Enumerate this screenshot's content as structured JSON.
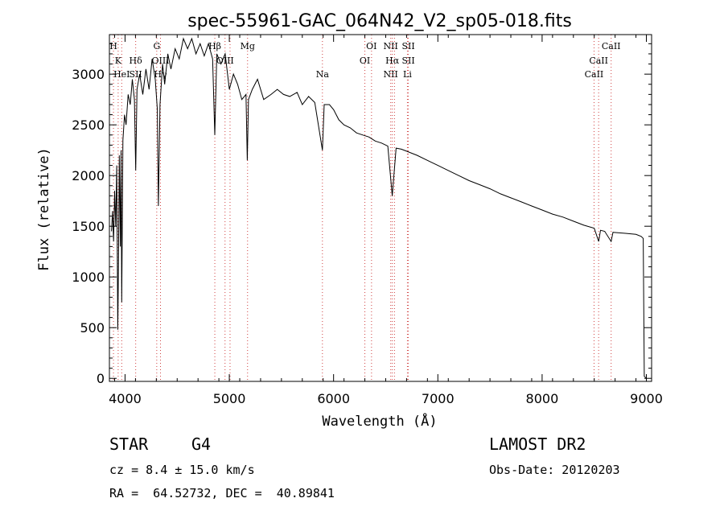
{
  "chart_data": {
    "type": "line",
    "title": "spec-55961-GAC_064N42_V2_sp05-018.fits",
    "xlabel": "Wavelength (Å)",
    "ylabel": "Flux (relative)",
    "xlim": [
      3850,
      9050
    ],
    "ylim": [
      -30,
      3390
    ],
    "xticks": [
      4000,
      5000,
      6000,
      7000,
      8000,
      9000
    ],
    "yticks": [
      0,
      500,
      1000,
      1500,
      2000,
      2500,
      3000
    ],
    "grid": false,
    "legend": "none",
    "series": [
      {
        "points": [
          [
            3870,
            1450
          ],
          [
            3880,
            1650
          ],
          [
            3890,
            1350
          ],
          [
            3900,
            1850
          ],
          [
            3910,
            1500
          ],
          [
            3920,
            2100
          ],
          [
            3930,
            480
          ],
          [
            3935,
            900
          ],
          [
            3945,
            2200
          ],
          [
            3955,
            1300
          ],
          [
            3962,
            2250
          ],
          [
            3968,
            750
          ],
          [
            3980,
            2350
          ],
          [
            3995,
            2600
          ],
          [
            4010,
            2500
          ],
          [
            4030,
            2800
          ],
          [
            4050,
            2700
          ],
          [
            4070,
            2950
          ],
          [
            4090,
            2750
          ],
          [
            4102,
            2050
          ],
          [
            4115,
            2850
          ],
          [
            4140,
            3000
          ],
          [
            4170,
            2800
          ],
          [
            4200,
            3050
          ],
          [
            4230,
            2850
          ],
          [
            4260,
            3150
          ],
          [
            4290,
            2950
          ],
          [
            4310,
            2650
          ],
          [
            4320,
            1700
          ],
          [
            4335,
            2700
          ],
          [
            4360,
            3100
          ],
          [
            4380,
            2900
          ],
          [
            4410,
            3200
          ],
          [
            4440,
            3050
          ],
          [
            4480,
            3250
          ],
          [
            4520,
            3150
          ],
          [
            4560,
            3350
          ],
          [
            4600,
            3250
          ],
          [
            4640,
            3350
          ],
          [
            4680,
            3200
          ],
          [
            4720,
            3300
          ],
          [
            4760,
            3180
          ],
          [
            4800,
            3300
          ],
          [
            4840,
            3150
          ],
          [
            4861,
            2400
          ],
          [
            4880,
            3200
          ],
          [
            4920,
            3100
          ],
          [
            4960,
            3200
          ],
          [
            5000,
            2850
          ],
          [
            5040,
            3000
          ],
          [
            5080,
            2900
          ],
          [
            5120,
            2750
          ],
          [
            5160,
            2800
          ],
          [
            5172,
            2150
          ],
          [
            5184,
            2750
          ],
          [
            5220,
            2850
          ],
          [
            5270,
            2950
          ],
          [
            5330,
            2750
          ],
          [
            5400,
            2800
          ],
          [
            5460,
            2850
          ],
          [
            5520,
            2800
          ],
          [
            5580,
            2780
          ],
          [
            5650,
            2820
          ],
          [
            5700,
            2700
          ],
          [
            5760,
            2780
          ],
          [
            5820,
            2720
          ],
          [
            5893,
            2250
          ],
          [
            5910,
            2700
          ],
          [
            5960,
            2700
          ],
          [
            6000,
            2650
          ],
          [
            6050,
            2550
          ],
          [
            6100,
            2500
          ],
          [
            6160,
            2470
          ],
          [
            6220,
            2420
          ],
          [
            6280,
            2400
          ],
          [
            6340,
            2380
          ],
          [
            6400,
            2340
          ],
          [
            6460,
            2320
          ],
          [
            6520,
            2290
          ],
          [
            6563,
            1800
          ],
          [
            6600,
            2270
          ],
          [
            6650,
            2260
          ],
          [
            6700,
            2240
          ],
          [
            6800,
            2200
          ],
          [
            6900,
            2150
          ],
          [
            7000,
            2100
          ],
          [
            7100,
            2050
          ],
          [
            7200,
            2000
          ],
          [
            7300,
            1950
          ],
          [
            7400,
            1910
          ],
          [
            7500,
            1870
          ],
          [
            7600,
            1820
          ],
          [
            7700,
            1780
          ],
          [
            7800,
            1740
          ],
          [
            7900,
            1700
          ],
          [
            8000,
            1660
          ],
          [
            8100,
            1620
          ],
          [
            8200,
            1590
          ],
          [
            8300,
            1550
          ],
          [
            8400,
            1510
          ],
          [
            8500,
            1480
          ],
          [
            8542,
            1350
          ],
          [
            8560,
            1460
          ],
          [
            8600,
            1450
          ],
          [
            8662,
            1350
          ],
          [
            8680,
            1440
          ],
          [
            8800,
            1430
          ],
          [
            8900,
            1420
          ],
          [
            8950,
            1400
          ],
          [
            8970,
            1380
          ],
          [
            8980,
            20
          ],
          [
            9000,
            0
          ]
        ]
      }
    ],
    "lines": [
      {
        "w": 3889,
        "labels": [
          {
            "text": "H",
            "row": 0
          }
        ]
      },
      {
        "w": 3934,
        "labels": [
          {
            "text": "K",
            "row": 1
          }
        ]
      },
      {
        "w": 3968,
        "labels": [
          {
            "text": "HeI",
            "row": 2
          }
        ]
      },
      {
        "w": 4102,
        "labels": [
          {
            "text": "Hδ",
            "row": 1
          },
          {
            "text": "SII",
            "row": 2
          }
        ]
      },
      {
        "w": 4304,
        "labels": [
          {
            "text": "G",
            "row": 0
          }
        ]
      },
      {
        "w": 4340,
        "labels": [
          {
            "text": "OIII",
            "row": 1
          },
          {
            "text": "Hγ",
            "row": 2
          }
        ]
      },
      {
        "w": 4861,
        "labels": [
          {
            "text": "Hβ",
            "row": 0
          }
        ]
      },
      {
        "w": 4959,
        "labels": [
          {
            "text": "OIII",
            "row": 1
          }
        ]
      },
      {
        "w": 5007,
        "labels": []
      },
      {
        "w": 5175,
        "labels": [
          {
            "text": "Mg",
            "row": 0
          }
        ]
      },
      {
        "w": 5893,
        "labels": [
          {
            "text": "Na",
            "row": 2
          }
        ]
      },
      {
        "w": 6300,
        "labels": [
          {
            "text": "OI",
            "row": 1
          }
        ]
      },
      {
        "w": 6364,
        "labels": [
          {
            "text": "OI",
            "row": 0
          }
        ]
      },
      {
        "w": 6548,
        "labels": [
          {
            "text": "NII",
            "row": 0
          },
          {
            "text": "NII",
            "row": 2
          }
        ]
      },
      {
        "w": 6563,
        "labels": [
          {
            "text": "Hα",
            "row": 1
          }
        ]
      },
      {
        "w": 6584,
        "labels": []
      },
      {
        "w": 6708,
        "labels": [
          {
            "text": "Li",
            "row": 2
          }
        ]
      },
      {
        "w": 6717,
        "labels": [
          {
            "text": "SII",
            "row": 0
          },
          {
            "text": "SII",
            "row": 1
          }
        ]
      },
      {
        "w": 8498,
        "labels": [
          {
            "text": "CaII",
            "row": 2
          }
        ]
      },
      {
        "w": 8542,
        "labels": [
          {
            "text": "CaII",
            "row": 1
          }
        ]
      },
      {
        "w": 8662,
        "labels": [
          {
            "text": "CaII",
            "row": 0
          }
        ]
      }
    ]
  },
  "info": {
    "class_label": "STAR",
    "subclass": "G4",
    "survey": "LAMOST DR2",
    "cz": "cz = 8.4 ± 15.0 km/s",
    "obs_date": "Obs-Date: 20120203",
    "coords": "RA =  64.52732, DEC =  40.89841"
  },
  "colors": {
    "spectrum": "#000000",
    "line_markers": "#d04040"
  }
}
